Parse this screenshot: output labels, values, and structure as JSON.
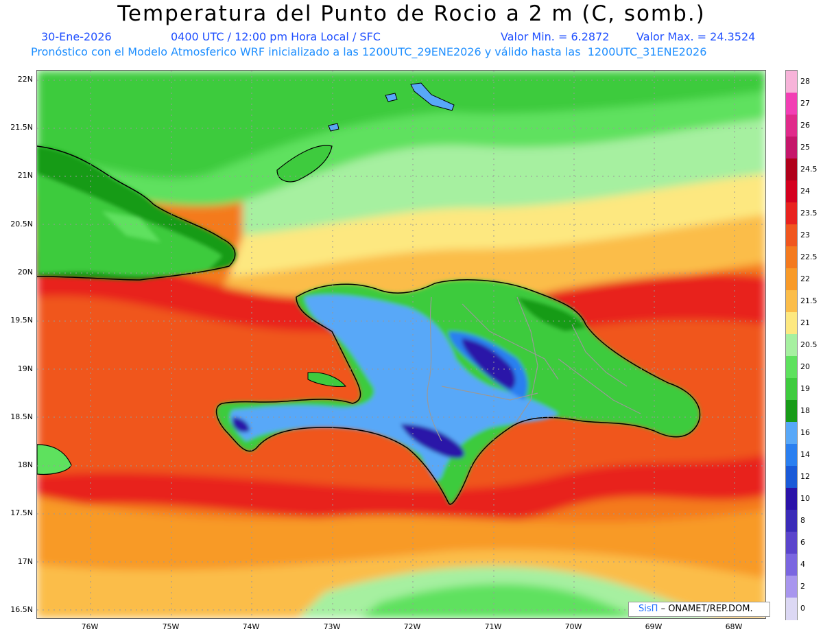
{
  "title": "Temperatura del Punto de Rocio a 2 m (C, somb.)",
  "subtitle": {
    "date": "30-Ene-2026",
    "time": "0400 UTC / 12:00 pm Hora Local / SFC",
    "min": "Valor Min. = 6.2872",
    "max": "Valor Max. = 24.3524",
    "model": "Pronóstico con el Modelo Atmosferico WRF inicializado a las 1200UTC_29ENE2026 y válido hasta las  1200UTC_31ENE2026"
  },
  "map": {
    "lat_labels": [
      "22N",
      "21.5N",
      "21N",
      "20.5N",
      "20N",
      "19.5N",
      "19N",
      "18.5N",
      "18N",
      "17.5N",
      "17N",
      "16.5N"
    ],
    "lon_labels": [
      "76W",
      "75W",
      "74W",
      "73W",
      "72W",
      "71W",
      "70W",
      "69W",
      "68W"
    ],
    "colorbar": {
      "labels": [
        "28",
        "27",
        "26",
        "25",
        "24.5",
        "24",
        "23.5",
        "23",
        "22.5",
        "22",
        "21.5",
        "21",
        "20.5",
        "20",
        "19",
        "18",
        "16",
        "14",
        "12",
        "10",
        "8",
        "6",
        "4",
        "2",
        "0"
      ],
      "colors": [
        "#f7b3d9",
        "#f23eb4",
        "#e02a8a",
        "#c5166a",
        "#b0001a",
        "#d4001e",
        "#e8221e",
        "#f0561e",
        "#f47a1e",
        "#f89a28",
        "#fbbd4a",
        "#fde880",
        "#a6f0a0",
        "#5ee15e",
        "#3ecb3e",
        "#189b18",
        "#58a8f8",
        "#2a7ff0",
        "#1a5ad8",
        "#2a12a8",
        "#3a2bb8",
        "#5a44cc",
        "#7a66e0",
        "#a896ee",
        "#dcd8f4"
      ]
    },
    "credit_logo": "SisΠ",
    "credit_text": "– ONAMET/REP.DOM."
  }
}
